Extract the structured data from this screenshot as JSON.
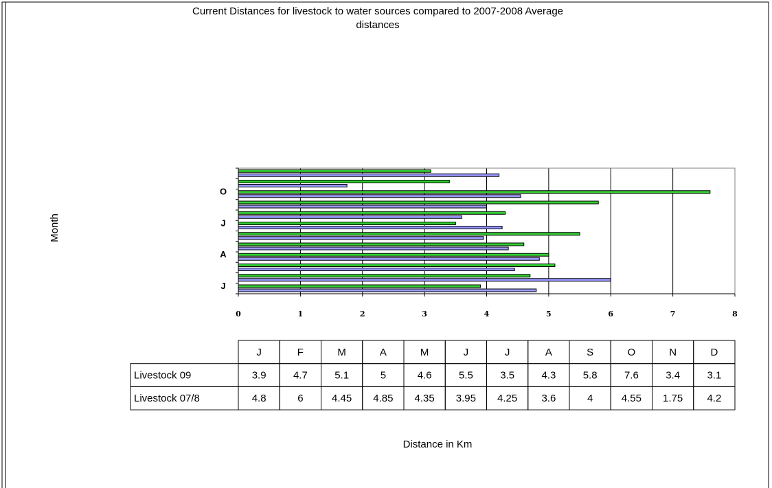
{
  "chart_data": {
    "type": "hbar",
    "title": "Current Distances for livestock to water sources compared to 2007-2008 Average",
    "title_line2": "distances",
    "y_label": "Month",
    "x_label": "Distance in Km",
    "categories": [
      "J",
      "F",
      "M",
      "A",
      "M",
      "J",
      "J",
      "A",
      "S",
      "O",
      "N",
      "D"
    ],
    "series": [
      {
        "name": "Livestock 09",
        "color": "#33cc33",
        "values": [
          3.9,
          4.7,
          5.1,
          5,
          4.6,
          5.5,
          3.5,
          4.3,
          5.8,
          7.6,
          3.4,
          3.1
        ]
      },
      {
        "name": "Livestock 07/8",
        "color": "#9999ff",
        "values": [
          4.8,
          6,
          4.45,
          4.85,
          4.35,
          3.95,
          4.25,
          3.6,
          4,
          4.55,
          1.75,
          4.2
        ]
      }
    ],
    "xlim": [
      0,
      8
    ],
    "xticks": [
      0,
      1,
      2,
      3,
      4,
      5,
      6,
      7,
      8
    ],
    "grid": true
  }
}
